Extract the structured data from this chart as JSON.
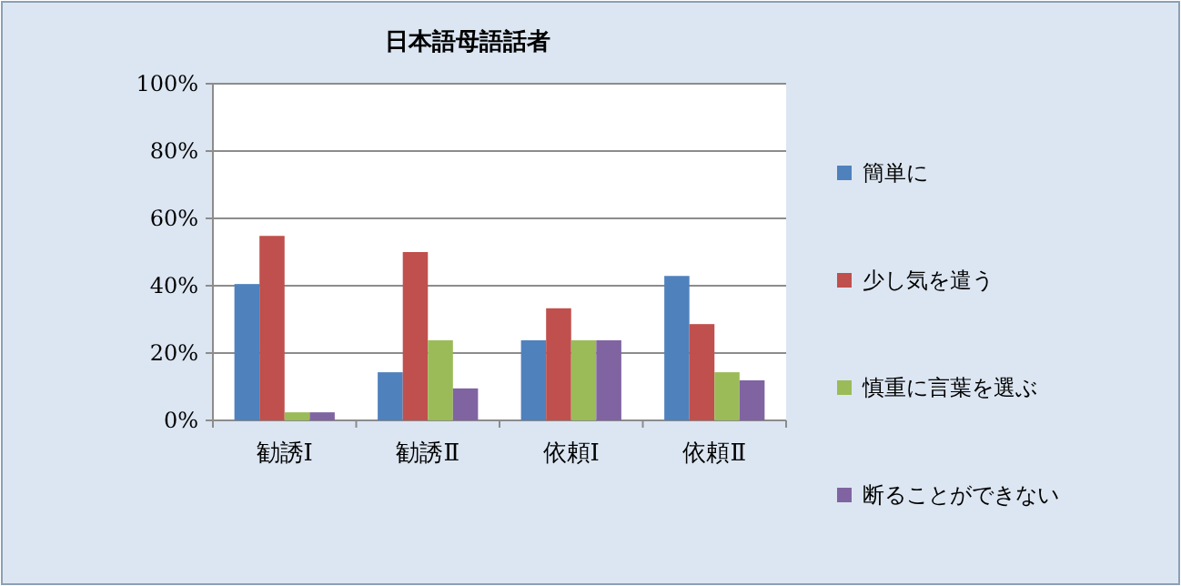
{
  "chart_data": {
    "type": "bar",
    "title": "日本語母語話者",
    "categories": [
      "勧誘Ⅰ",
      "勧誘Ⅱ",
      "依頼Ⅰ",
      "依頼Ⅱ"
    ],
    "series": [
      {
        "name": "簡単に",
        "color": "#4f81bd",
        "values": [
          40.5,
          14.3,
          23.8,
          42.9
        ]
      },
      {
        "name": "少し気を遣う",
        "color": "#c0504d",
        "values": [
          54.8,
          50,
          33.3,
          28.6
        ]
      },
      {
        "name": "慎重に言葉を選ぶ",
        "color": "#9bbb59",
        "values": [
          2.4,
          23.8,
          23.8,
          14.3
        ]
      },
      {
        "name": "断ることができない",
        "color": "#8064a2",
        "values": [
          2.4,
          9.5,
          23.8,
          11.9
        ]
      }
    ],
    "ylim": [
      0,
      100
    ],
    "yticks": [
      {
        "value": 0,
        "label": "0%"
      },
      {
        "value": 20,
        "label": "20%"
      },
      {
        "value": 40,
        "label": "40%"
      },
      {
        "value": 60,
        "label": "60%"
      },
      {
        "value": 80,
        "label": "80%"
      },
      {
        "value": 100,
        "label": "100%"
      }
    ],
    "grid": "y",
    "legend": "right"
  }
}
